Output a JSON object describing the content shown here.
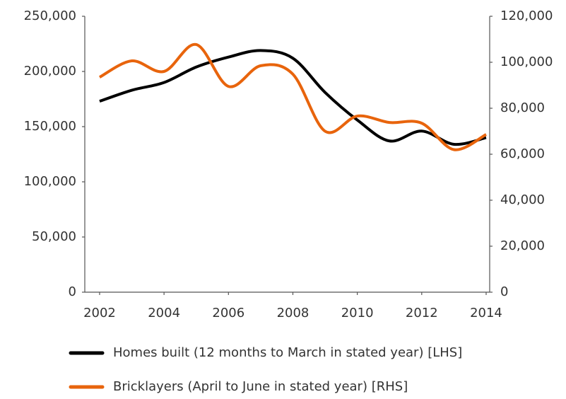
{
  "chart_data": {
    "type": "line",
    "x": [
      2002,
      2003,
      2004,
      2005,
      2006,
      2007,
      2008,
      2009,
      2010,
      2011,
      2012,
      2013,
      2014
    ],
    "series": [
      {
        "name": "Homes built (12 months to March in stated year) [LHS]",
        "color": "#000000",
        "values": [
          173000,
          183000,
          190000,
          204000,
          213000,
          219000,
          212000,
          181000,
          156000,
          137000,
          146000,
          134000,
          140000
        ]
      },
      {
        "name": "Bricklayers (April to June in stated year) [RHS]",
        "color": "#e8640c",
        "axis": "y2",
        "values": [
          93500,
          100600,
          96000,
          107700,
          89500,
          98500,
          94800,
          70000,
          76600,
          73800,
          73500,
          62000,
          68600
        ]
      }
    ],
    "xlim": [
      2001.54,
      2014.11
    ],
    "xticks": [
      2002,
      2004,
      2006,
      2008,
      2010,
      2012,
      2014
    ],
    "ylim": [
      0,
      250000
    ],
    "yticks": [
      0,
      {
        "value": 50000,
        "label": "50,000"
      },
      {
        "value": 100000,
        "label": "100,000"
      },
      {
        "value": 150000,
        "label": "150,000"
      },
      {
        "value": 200000,
        "label": "200,000"
      },
      {
        "value": 250000,
        "label": "250,000"
      }
    ],
    "y2lim": [
      0,
      120000
    ],
    "y2ticks": [
      0,
      {
        "value": 20000,
        "label": "20,000"
      },
      {
        "value": 40000,
        "label": "40,000"
      },
      {
        "value": 60000,
        "label": "60,000"
      },
      {
        "value": 80000,
        "label": "80,000"
      },
      {
        "value": 100000,
        "label": "100,000"
      },
      {
        "value": 120000,
        "label": "120,000"
      }
    ],
    "legend": "bottom"
  }
}
